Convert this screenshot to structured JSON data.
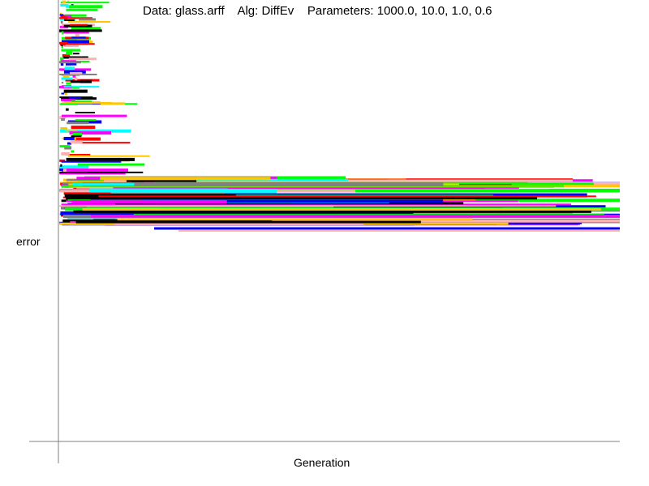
{
  "title": {
    "data": "Data: glass.arff",
    "alg": "Alg: DiffEv",
    "params": "Parameters: 1000.0, 10.0, 1.0, 0.6"
  },
  "chart_data": {
    "type": "line",
    "title": "Data: glass.arff    Alg: DiffEv    Parameters: 1000.0, 10.0, 1.0, 0.6",
    "xlabel": "Generation",
    "ylabel": "error",
    "ticks": false,
    "grid": false,
    "legend": "none",
    "note": "",
    "palette": [
      "#ff00ff",
      "#0000ff",
      "#00ff00",
      "#ffc800",
      "#ffafaf",
      "#ff0000",
      "#000000",
      "#808080",
      "#00ffff"
    ],
    "final_error_band": [
      220,
      285
    ]
  }
}
